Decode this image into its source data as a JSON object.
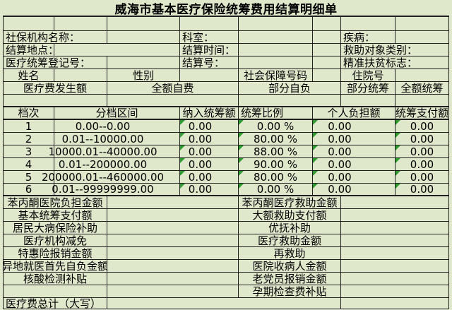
{
  "title": "威海市基本医疗保险统筹费用结算明细单",
  "colors": {
    "background": "#dfe8cb",
    "grid_line": "#1f1f1f",
    "error_triangle": "#2e9b2e",
    "text": "#000000"
  },
  "fields": {
    "org_label": "社保机构名称：",
    "dept_label": "科室：",
    "disease_label": "疾病：",
    "place_label": "结算地点：",
    "time_label": "结算时间：",
    "aid_type_label": "救助对象类别：",
    "reg_label": "医疗统筹登记号：",
    "settle_no_label": "结算号：",
    "poverty_label": "精准扶贫标志：",
    "name_label": "姓名",
    "gender_label": "性别",
    "ssn_label": "社会保障号码",
    "hospital_no_label": "住院号",
    "fee_label": "医疗费发生额",
    "full_self_label": "全额自费",
    "part_self_label": "部分自负",
    "part_pool_label": "部分统筹",
    "full_pool_label": "全额统筹"
  },
  "tier_table": {
    "headers": [
      "档次",
      "分档区间",
      "纳入统筹额",
      "统筹比例",
      "个人负担额",
      "统筹支付额"
    ],
    "rows": [
      {
        "tier": "1",
        "range": "0.00--0.00",
        "included": "0.00",
        "ratio": "0.00 %",
        "personal": "0.00",
        "pooled": "0.00"
      },
      {
        "tier": "2",
        "range": "0.01--10000.00",
        "included": "0.00",
        "ratio": "80.00 %",
        "personal": "0.00",
        "pooled": "0.00"
      },
      {
        "tier": "3",
        "range": "10000.01--40000.00",
        "included": "0.00",
        "ratio": "88.00 %",
        "personal": "0.00",
        "pooled": "0.00"
      },
      {
        "tier": "4",
        "range": "0.01--200000.00",
        "included": "0.00",
        "ratio": "90.00 %",
        "personal": "0.00",
        "pooled": "0.00"
      },
      {
        "tier": "5",
        "range": "200000.01--460000.00",
        "included": "0.00",
        "ratio": "80.00 %",
        "personal": "0.00",
        "pooled": "0.00"
      },
      {
        "tier": "6",
        "range": "0.01--99999999.00",
        "included": "0.00",
        "ratio": "0.00 %",
        "personal": "0.00",
        "pooled": "0.00"
      }
    ]
  },
  "summary": {
    "left": [
      {
        "label": "苯丙酮医院负担金额",
        "value": ""
      },
      {
        "label": "基本统筹支付额",
        "value": ""
      },
      {
        "label": "居民大病保险补助",
        "value": ""
      },
      {
        "label": "医疗机构减免",
        "value": ""
      },
      {
        "label": "特惠险报销金额",
        "value": ""
      },
      {
        "label": "异地就医首先自负金额",
        "value": ""
      },
      {
        "label": "核酸检测补贴",
        "value": ""
      },
      {
        "label": "",
        "value": ""
      }
    ],
    "right": [
      {
        "label": "苯丙酮医疗救助金额",
        "value": ""
      },
      {
        "label": "大额救助支付额",
        "value": ""
      },
      {
        "label": "优抚补助",
        "value": ""
      },
      {
        "label": "医疗救助金额",
        "value": ""
      },
      {
        "label": "再救助",
        "value": ""
      },
      {
        "label": "医院收病人金额",
        "value": ""
      },
      {
        "label": "老党员报销金额",
        "value": ""
      },
      {
        "label": "孕期检查费补贴",
        "value": ""
      }
    ]
  },
  "total": {
    "label": "医疗费总计（大写）",
    "value": "",
    "value2": ""
  }
}
